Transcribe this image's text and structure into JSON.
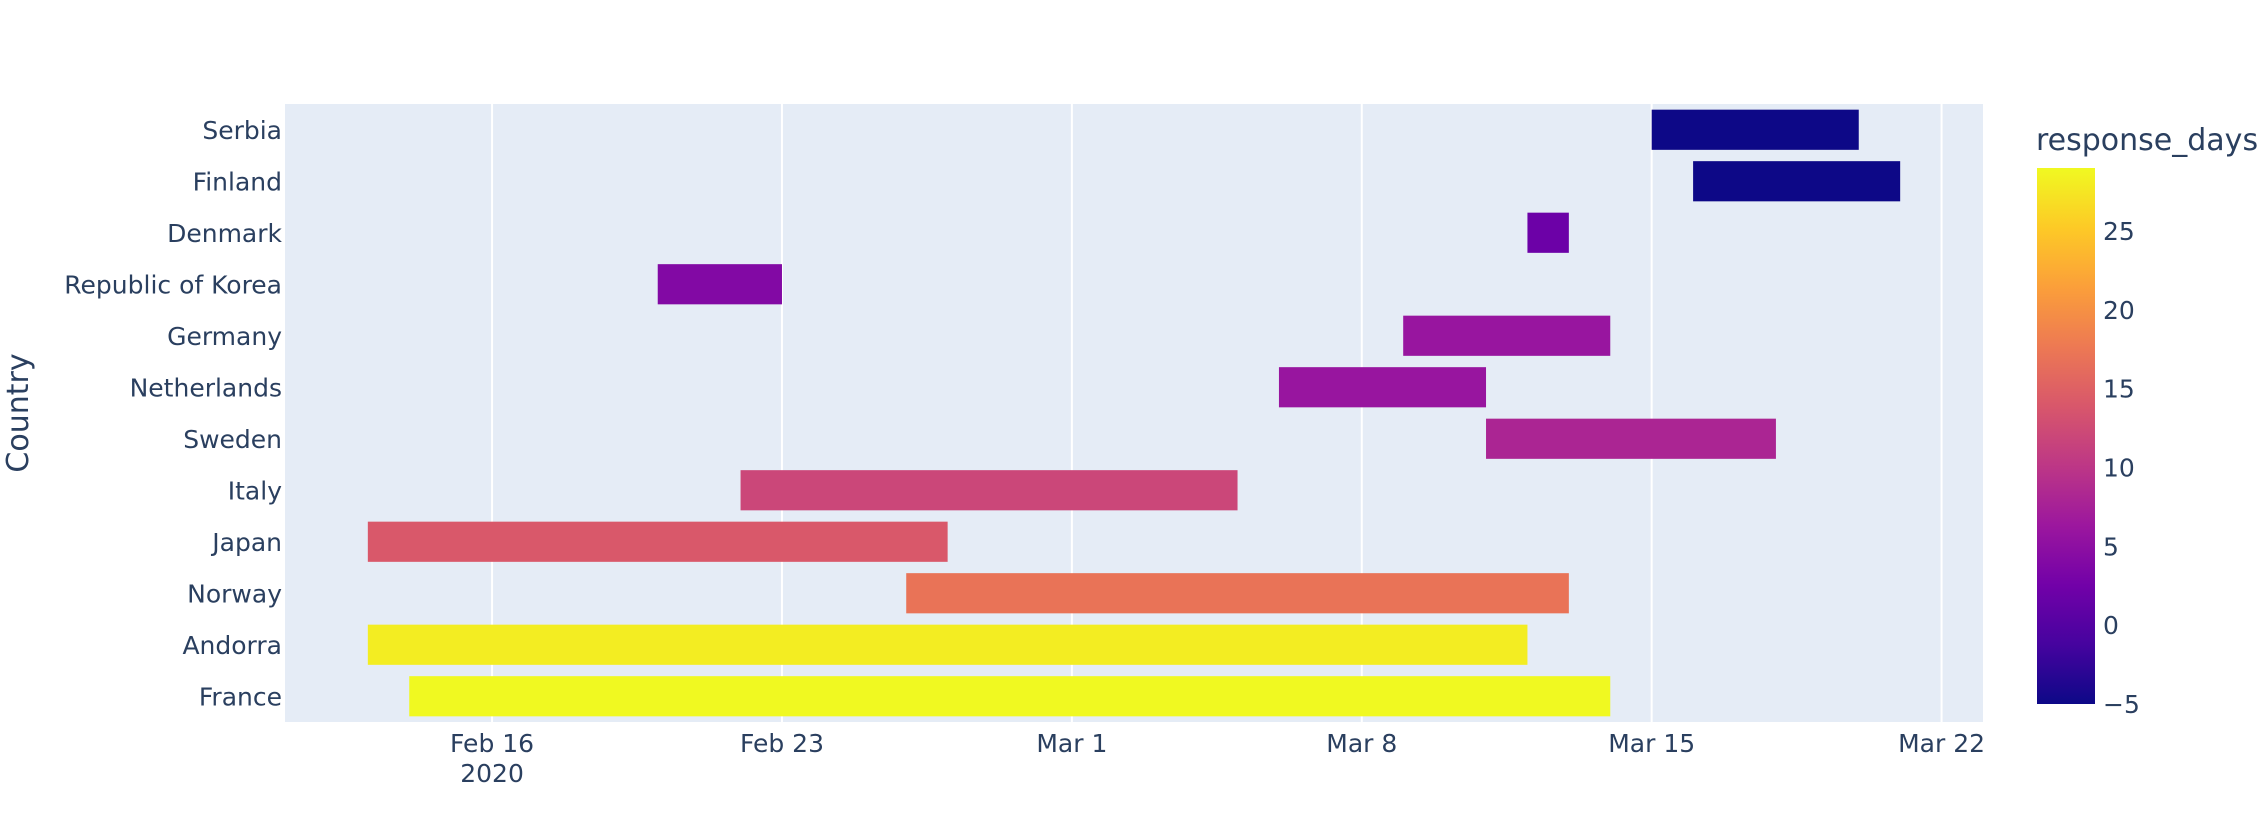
{
  "chart_data": {
    "type": "timeline",
    "ylabel": "Country",
    "xlabel": "",
    "x_ticks": [
      "2020-02-16",
      "2020-02-23",
      "2020-03-01",
      "2020-03-08",
      "2020-03-15",
      "2020-03-22"
    ],
    "x_tick_labels": [
      "Feb 16",
      "Feb 23",
      "Mar 1",
      "Mar 8",
      "Mar 15",
      "Mar 22"
    ],
    "x_year_label": "2020",
    "xlim": [
      "2020-02-11",
      "2020-03-23"
    ],
    "grid": true,
    "legend": "colorbar-right",
    "color_scale": {
      "title": "response_days",
      "range": [
        -5,
        29
      ],
      "ticks": [
        -5,
        0,
        5,
        10,
        15,
        20,
        25
      ],
      "tick_labels": [
        "−5",
        "0",
        "5",
        "10",
        "15",
        "20",
        "25"
      ],
      "colors": [
        "#0d0887",
        "#46039f",
        "#7201a8",
        "#9c179e",
        "#bd3786",
        "#d8576b",
        "#ed7953",
        "#fb9f3a",
        "#fdca26",
        "#f0f921"
      ]
    },
    "categories": [
      "Serbia",
      "Finland",
      "Denmark",
      "Republic of Korea",
      "Germany",
      "Netherlands",
      "Sweden",
      "Italy",
      "Japan",
      "Norway",
      "Andorra",
      "France"
    ],
    "bars": [
      {
        "country": "Serbia",
        "start": "2020-03-15",
        "end": "2020-03-20",
        "response_days": -5
      },
      {
        "country": "Finland",
        "start": "2020-03-16",
        "end": "2020-03-21",
        "response_days": -5
      },
      {
        "country": "Denmark",
        "start": "2020-03-12",
        "end": "2020-03-13",
        "response_days": 2
      },
      {
        "country": "Republic of Korea",
        "start": "2020-02-20",
        "end": "2020-02-23",
        "response_days": 4
      },
      {
        "country": "Germany",
        "start": "2020-03-09",
        "end": "2020-03-14",
        "response_days": 6
      },
      {
        "country": "Netherlands",
        "start": "2020-03-06",
        "end": "2020-03-11",
        "response_days": 6
      },
      {
        "country": "Sweden",
        "start": "2020-03-11",
        "end": "2020-03-18",
        "response_days": 8
      },
      {
        "country": "Italy",
        "start": "2020-02-22",
        "end": "2020-03-05",
        "response_days": 12
      },
      {
        "country": "Japan",
        "start": "2020-02-13",
        "end": "2020-02-27",
        "response_days": 14
      },
      {
        "country": "Norway",
        "start": "2020-02-26",
        "end": "2020-03-13",
        "response_days": 17
      },
      {
        "country": "Andorra",
        "start": "2020-02-13",
        "end": "2020-03-12",
        "response_days": 28
      },
      {
        "country": "France",
        "start": "2020-02-14",
        "end": "2020-03-14",
        "response_days": 29
      }
    ]
  }
}
